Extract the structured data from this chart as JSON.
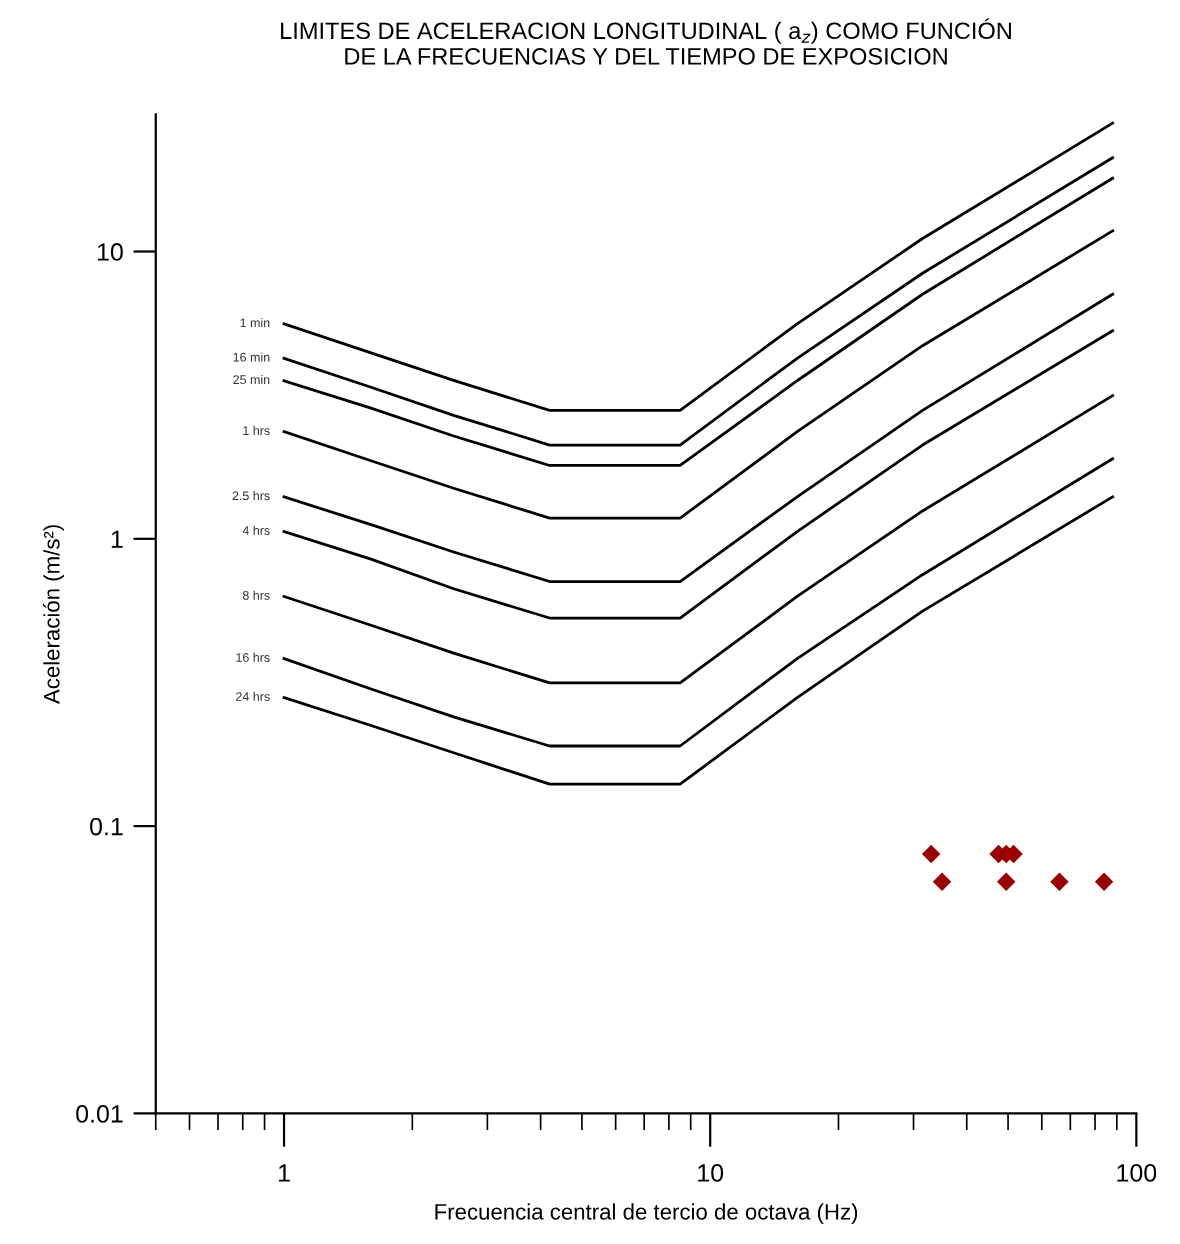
{
  "chart_data": {
    "type": "line",
    "title": "LIMITES DE ACELERACION LONGITUDINAL ( a$_{z}$) COMO FUNCIÓN\nDE LA FRECUENCIAS Y DEL TIEMPO DE EXPOSICION",
    "xlabel": "Frecuencia central de tercio de octava (Hz)",
    "ylabel": "Aceleración (m/s²)",
    "log": "xy",
    "xlim": [
      0.5,
      100
    ],
    "ylim": [
      0.01,
      30
    ],
    "xticks": [
      1,
      10,
      100
    ],
    "yticks": [
      0.01,
      0.1,
      1,
      10
    ],
    "grid": false,
    "legend": false,
    "marker": "none",
    "line_style": "solid",
    "x": [
      1,
      1.6,
      2.5,
      4.2,
      8.5,
      16,
      31.5,
      88
    ],
    "series": [
      {
        "name": "1 min",
        "color": "#000000",
        "values": [
          5.6,
          4.44,
          3.56,
          2.8,
          2.8,
          5.6,
          11.1,
          28
        ]
      },
      {
        "name": "16 min",
        "color": "#000000",
        "values": [
          4.25,
          3.37,
          2.69,
          2.12,
          2.12,
          4.25,
          8.4,
          21.2
        ]
      },
      {
        "name": "25 min",
        "color": "#000000",
        "values": [
          3.55,
          2.85,
          2.28,
          1.8,
          1.8,
          3.55,
          7.1,
          18
        ]
      },
      {
        "name": "1 hrs",
        "color": "#000000",
        "values": [
          2.36,
          1.87,
          1.5,
          1.18,
          1.18,
          2.36,
          4.7,
          11.8
        ]
      },
      {
        "name": "2.5 hrs",
        "color": "#000000",
        "values": [
          1.4,
          1.12,
          0.9,
          0.71,
          0.71,
          1.4,
          2.8,
          7.1
        ]
      },
      {
        "name": "4 hrs",
        "color": "#000000",
        "values": [
          1.06,
          0.85,
          0.67,
          0.53,
          0.53,
          1.06,
          2.12,
          5.3
        ]
      },
      {
        "name": "8 hrs",
        "color": "#000000",
        "values": [
          0.63,
          0.5,
          0.4,
          0.315,
          0.315,
          0.63,
          1.25,
          3.15
        ]
      },
      {
        "name": "16 hrs",
        "color": "#000000",
        "values": [
          0.383,
          0.3,
          0.24,
          0.19,
          0.19,
          0.383,
          0.75,
          1.9
        ]
      },
      {
        "name": "24 hrs",
        "color": "#000000",
        "values": [
          0.28,
          0.224,
          0.18,
          0.14,
          0.14,
          0.28,
          0.56,
          1.4
        ]
      },
      {
        "type": "scatter",
        "marker": "diamond",
        "color": "#990000",
        "x": [
          33,
          47.5,
          49.5,
          51.5,
          35,
          49.5,
          66,
          84
        ],
        "values": [
          0.08,
          0.08,
          0.08,
          0.08,
          0.064,
          0.064,
          0.064,
          0.064
        ]
      }
    ]
  }
}
